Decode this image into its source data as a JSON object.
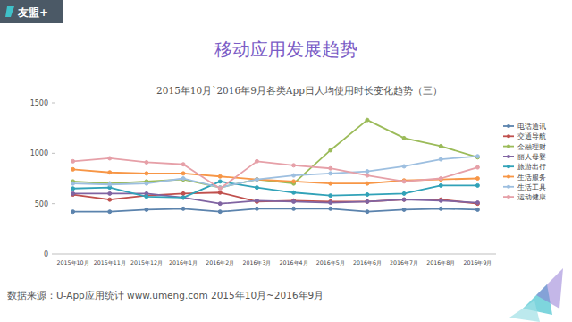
{
  "logo": "友盟+",
  "page_title": "移动应用发展趋势",
  "source": "数据来源：U-App应用统计 www.umeng.com 2015年10月~2016年9月",
  "chart_data": {
    "type": "line",
    "title": "2015年10月`2016年9月各类App日人均使用时长变化趋势（三）",
    "categories": [
      "2015年10月",
      "2015年11月",
      "2015年12月",
      "2016年1月",
      "2016年2月",
      "2016年3月",
      "2016年4月",
      "2016年5月",
      "2016年6月",
      "2016年7月",
      "2016年8月",
      "2016年9月"
    ],
    "series": [
      {
        "name": "电话通讯",
        "color": "#5b83ad",
        "values": [
          420,
          420,
          440,
          450,
          420,
          450,
          450,
          450,
          420,
          440,
          450,
          440
        ]
      },
      {
        "name": "交通导航",
        "color": "#c0504d",
        "values": [
          590,
          540,
          580,
          600,
          610,
          520,
          530,
          520,
          520,
          540,
          540,
          500
        ]
      },
      {
        "name": "金融理财",
        "color": "#9bbb59",
        "values": [
          720,
          700,
          720,
          740,
          660,
          740,
          700,
          1030,
          1330,
          1150,
          1070,
          960
        ]
      },
      {
        "name": "丽人母婴",
        "color": "#8064a2",
        "values": [
          600,
          600,
          600,
          560,
          500,
          530,
          520,
          510,
          520,
          540,
          530,
          510
        ]
      },
      {
        "name": "旅游出行",
        "color": "#31a2b8",
        "values": [
          650,
          660,
          570,
          560,
          720,
          660,
          610,
          580,
          590,
          600,
          680,
          680
        ]
      },
      {
        "name": "生活服务",
        "color": "#f79646",
        "values": [
          840,
          810,
          800,
          800,
          770,
          740,
          720,
          700,
          700,
          730,
          740,
          750
        ]
      },
      {
        "name": "生活工具",
        "color": "#9dbfe0",
        "values": [
          700,
          690,
          700,
          750,
          660,
          740,
          780,
          800,
          820,
          870,
          940,
          970
        ]
      },
      {
        "name": "运动健康",
        "color": "#e6a0a8",
        "values": [
          920,
          950,
          910,
          890,
          650,
          920,
          880,
          850,
          780,
          720,
          750,
          860
        ]
      }
    ],
    "ylim": [
      0,
      1500
    ],
    "yticks": [
      0,
      500,
      1000,
      1500
    ],
    "grid": false,
    "legend": "right",
    "marker": "circle"
  }
}
